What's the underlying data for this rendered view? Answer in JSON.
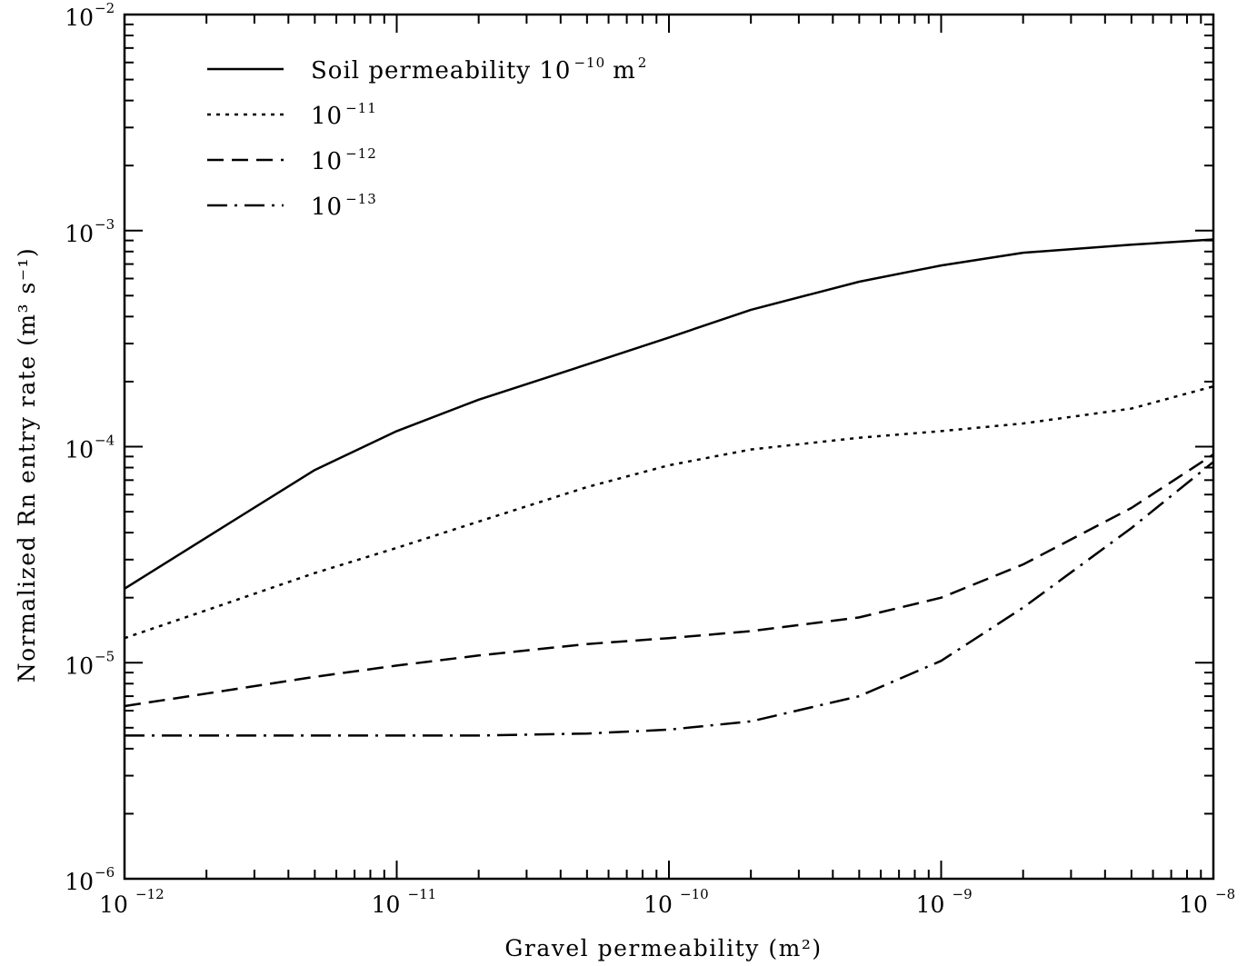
{
  "chart_data": {
    "type": "line",
    "xlabel": "Gravel permeability (m²)",
    "ylabel": "Normalized Rn entry rate (m³ s⁻¹)",
    "xscale": "log",
    "yscale": "log",
    "xlim": [
      1e-12,
      1e-08
    ],
    "ylim": [
      1e-06,
      0.01
    ],
    "grid": false,
    "legend_position": "top-left",
    "legend_prefix": "Soil permeability",
    "legend_unit": "m",
    "legend_unit_exp": "2",
    "x_ticks": [
      {
        "base": "10",
        "exp": "−12",
        "value": 1e-12
      },
      {
        "base": "10",
        "exp": "−11",
        "value": 1e-11
      },
      {
        "base": "10",
        "exp": "−10",
        "value": 1e-10
      },
      {
        "base": "10",
        "exp": "−9",
        "value": 1e-09
      },
      {
        "base": "10",
        "exp": "−8",
        "value": 1e-08
      }
    ],
    "y_ticks": [
      {
        "base": "10",
        "exp": "−6",
        "value": 1e-06
      },
      {
        "base": "10",
        "exp": "−5",
        "value": 1e-05
      },
      {
        "base": "10",
        "exp": "−4",
        "value": 0.0001
      },
      {
        "base": "10",
        "exp": "−3",
        "value": 0.001
      },
      {
        "base": "10",
        "exp": "−2",
        "value": 0.01
      }
    ],
    "x": [
      1e-12,
      2e-12,
      5e-12,
      1e-11,
      2e-11,
      5e-11,
      1e-10,
      2e-10,
      5e-10,
      1e-09,
      2e-09,
      5e-09,
      1e-08
    ],
    "series": [
      {
        "name": "10⁻¹⁰",
        "label_base": "10",
        "label_exp": "−10",
        "dash": "solid",
        "values": [
          2.2e-05,
          3.8e-05,
          7.8e-05,
          0.000118,
          0.000165,
          0.00024,
          0.00032,
          0.00043,
          0.00058,
          0.00069,
          0.00079,
          0.00086,
          0.00091
        ]
      },
      {
        "name": "10⁻¹¹",
        "label_base": "10",
        "label_exp": "−11",
        "dash": "dotted",
        "values": [
          1.3e-05,
          1.75e-05,
          2.6e-05,
          3.4e-05,
          4.5e-05,
          6.5e-05,
          8.2e-05,
          9.7e-05,
          0.00011,
          0.000118,
          0.000128,
          0.00015,
          0.00019
        ]
      },
      {
        "name": "10⁻¹²",
        "label_base": "10",
        "label_exp": "−12",
        "dash": "dashed",
        "values": [
          6.3e-06,
          7.2e-06,
          8.6e-06,
          9.7e-06,
          1.08e-05,
          1.22e-05,
          1.3e-05,
          1.4e-05,
          1.62e-05,
          2e-05,
          2.85e-05,
          5.2e-05,
          9.2e-05
        ]
      },
      {
        "name": "10⁻¹³",
        "label_base": "10",
        "label_exp": "−13",
        "dash": "dashdot",
        "values": [
          4.6e-06,
          4.6e-06,
          4.6e-06,
          4.6e-06,
          4.6e-06,
          4.7e-06,
          4.9e-06,
          5.35e-06,
          7e-06,
          1.02e-05,
          1.8e-05,
          4.2e-05,
          8.5e-05
        ]
      }
    ]
  }
}
